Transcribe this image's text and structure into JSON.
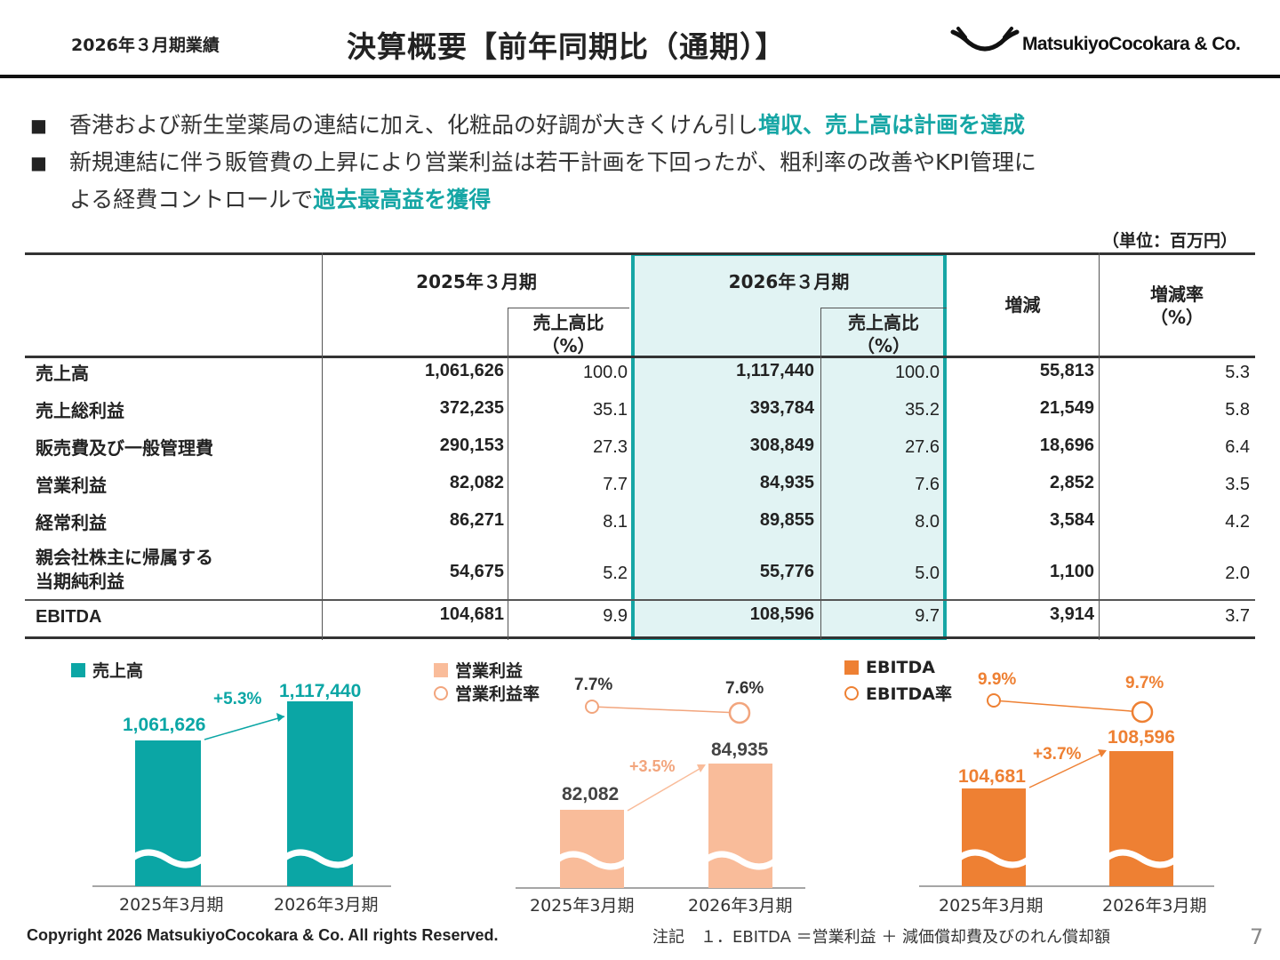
{
  "header": {
    "period": "2026年３月期業績",
    "title": "決算概要【前年同期比（通期）】",
    "logo_text": "MatsukiyoCocokara & Co."
  },
  "bullets": [
    {
      "plain": "香港および新生堂薬局の連結に加え、化粧品の好調が大きくけん引し",
      "highlight": "増収、売上高は計画を達成"
    },
    {
      "plain1": "新規連結に伴う販管費の上昇により営業利益は若干計画を下回ったが、粗利率の改善やKPI管理に",
      "plain2": "よる経費コントロールで",
      "highlight": "過去最高益を獲得"
    }
  ],
  "unit": "（単位：百万円）",
  "table": {
    "col_prev": "2025年３月期",
    "col_curr": "2026年３月期",
    "col_ratio": "売上高比\n（%）",
    "col_diff": "増減",
    "col_rate": "増減率\n（%）",
    "rows": [
      {
        "label": "売上高",
        "prev": "1,061,626",
        "prev_ratio": "100.0",
        "curr": "1,117,440",
        "curr_ratio": "100.0",
        "diff": "55,813",
        "rate": "5.3"
      },
      {
        "label": "売上総利益",
        "prev": "372,235",
        "prev_ratio": "35.1",
        "curr": "393,784",
        "curr_ratio": "35.2",
        "diff": "21,549",
        "rate": "5.8"
      },
      {
        "label": "販売費及び一般管理費",
        "prev": "290,153",
        "prev_ratio": "27.3",
        "curr": "308,849",
        "curr_ratio": "27.6",
        "diff": "18,696",
        "rate": "6.4"
      },
      {
        "label": "営業利益",
        "prev": "82,082",
        "prev_ratio": "7.7",
        "curr": "84,935",
        "curr_ratio": "7.6",
        "diff": "2,852",
        "rate": "3.5"
      },
      {
        "label": "経常利益",
        "prev": "86,271",
        "prev_ratio": "8.1",
        "curr": "89,855",
        "curr_ratio": "8.0",
        "diff": "3,584",
        "rate": "4.2"
      },
      {
        "label": "親会社株主に帰属する\n当期純利益",
        "prev": "54,675",
        "prev_ratio": "5.2",
        "curr": "55,776",
        "curr_ratio": "5.0",
        "diff": "1,100",
        "rate": "2.0"
      },
      {
        "label": "EBITDA",
        "prev": "104,681",
        "prev_ratio": "9.9",
        "curr": "108,596",
        "curr_ratio": "9.7",
        "diff": "3,914",
        "rate": "3.7"
      }
    ]
  },
  "chart_data": [
    {
      "type": "bar",
      "categories": [
        "2025年3月期",
        "2026年3月期"
      ],
      "series": [
        {
          "name": "売上高",
          "values": [
            1061626,
            1117440
          ],
          "labels": [
            "1,061,626",
            "1,117,440"
          ]
        }
      ],
      "growth_label": "+5.3%",
      "color": "#0ba6a5"
    },
    {
      "type": "bar",
      "categories": [
        "2025年3月期",
        "2026年3月期"
      ],
      "series": [
        {
          "name": "営業利益",
          "values": [
            82082,
            84935
          ],
          "labels": [
            "82,082",
            "84,935"
          ]
        },
        {
          "name": "営業利益率",
          "values": [
            7.7,
            7.6
          ],
          "labels": [
            "7.7%",
            "7.6%"
          ]
        }
      ],
      "growth_label": "+3.5%",
      "color": "#f9bc9a",
      "line_color": "#f2a57d"
    },
    {
      "type": "bar",
      "categories": [
        "2025年3月期",
        "2026年3月期"
      ],
      "series": [
        {
          "name": "EBITDA",
          "values": [
            104681,
            108596
          ],
          "labels": [
            "104,681",
            "108,596"
          ]
        },
        {
          "name": "EBITDA率",
          "values": [
            9.9,
            9.7
          ],
          "labels": [
            "9.9%",
            "9.7%"
          ]
        }
      ],
      "growth_label": "+3.7%",
      "color": "#ee8033",
      "line_color": "#ee8033"
    }
  ],
  "footer": {
    "copyright": "Copyright 2026 MatsukiyoCocokara & Co. All rights Reserved.",
    "note": "注記　１．EBITDA ＝営業利益 ＋ 減価償却費及びのれん償却額",
    "page": "7"
  }
}
